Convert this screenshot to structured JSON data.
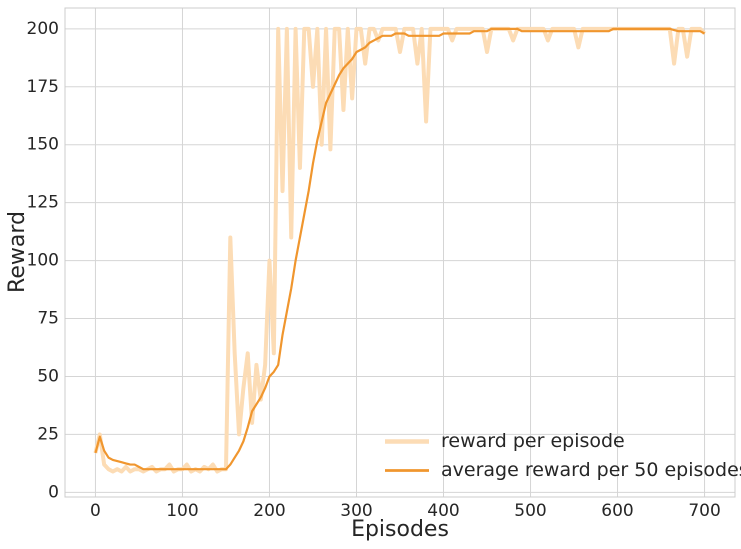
{
  "chart_data": {
    "type": "line",
    "x_label": "Episodes",
    "y_label": "Reward",
    "x": [
      0,
      5,
      10,
      15,
      20,
      25,
      30,
      35,
      40,
      45,
      50,
      55,
      60,
      65,
      70,
      75,
      80,
      85,
      90,
      95,
      100,
      105,
      110,
      115,
      120,
      125,
      130,
      135,
      140,
      145,
      150,
      155,
      160,
      165,
      170,
      175,
      180,
      185,
      190,
      195,
      200,
      205,
      210,
      215,
      220,
      225,
      230,
      235,
      240,
      245,
      250,
      255,
      260,
      265,
      270,
      275,
      280,
      285,
      290,
      295,
      300,
      305,
      310,
      315,
      320,
      325,
      330,
      335,
      340,
      345,
      350,
      355,
      360,
      365,
      370,
      375,
      380,
      385,
      390,
      395,
      400,
      405,
      410,
      415,
      420,
      425,
      430,
      435,
      440,
      445,
      450,
      455,
      460,
      465,
      470,
      475,
      480,
      485,
      490,
      495,
      500,
      505,
      510,
      515,
      520,
      525,
      530,
      535,
      540,
      545,
      550,
      555,
      560,
      565,
      570,
      575,
      580,
      585,
      590,
      595,
      600,
      605,
      610,
      615,
      620,
      625,
      630,
      635,
      640,
      645,
      650,
      655,
      660,
      665,
      670,
      675,
      680,
      685,
      690,
      695,
      700
    ],
    "series": [
      {
        "name": "reward per episode",
        "color": "#fcdcb5",
        "width": 4,
        "values": [
          17,
          25,
          12,
          10,
          9,
          10,
          9,
          11,
          9,
          10,
          10,
          9,
          10,
          11,
          9,
          10,
          10,
          12,
          9,
          10,
          10,
          12,
          9,
          10,
          9,
          11,
          10,
          12,
          9,
          10,
          10,
          110,
          60,
          25,
          45,
          60,
          30,
          55,
          40,
          55,
          100,
          60,
          200,
          130,
          200,
          110,
          200,
          140,
          200,
          200,
          175,
          200,
          150,
          200,
          148,
          200,
          200,
          165,
          200,
          170,
          200,
          200,
          185,
          200,
          200,
          195,
          200,
          200,
          200,
          200,
          190,
          200,
          200,
          200,
          185,
          200,
          160,
          200,
          200,
          200,
          200,
          200,
          195,
          200,
          200,
          200,
          200,
          200,
          200,
          200,
          190,
          200,
          200,
          200,
          200,
          200,
          195,
          200,
          200,
          200,
          200,
          200,
          200,
          200,
          195,
          200,
          200,
          200,
          200,
          200,
          200,
          192,
          200,
          200,
          200,
          200,
          200,
          200,
          200,
          200,
          200,
          200,
          200,
          200,
          200,
          200,
          200,
          200,
          200,
          200,
          200,
          200,
          200,
          185,
          200,
          200,
          188,
          200,
          200,
          200,
          198
        ]
      },
      {
        "name": "average reward per 50 episodes",
        "color": "#f0962e",
        "width": 2.2,
        "values": [
          17,
          24,
          18,
          15,
          14,
          13.5,
          13,
          12.5,
          12,
          12,
          11,
          10,
          10,
          10,
          10,
          10,
          10,
          10,
          10,
          10,
          10,
          10,
          10,
          10,
          10,
          10,
          10,
          10,
          10,
          10,
          10,
          12,
          15,
          18,
          22,
          28,
          35,
          38,
          41,
          45,
          50,
          52,
          55,
          68,
          78,
          88,
          100,
          110,
          120,
          130,
          142,
          152,
          160,
          168,
          172,
          176,
          180,
          183,
          185,
          187,
          190,
          191,
          192,
          194,
          195,
          196,
          197,
          197,
          197,
          198,
          198,
          198,
          197,
          197,
          197,
          197,
          197,
          197,
          197,
          197,
          198,
          198,
          198,
          198,
          198,
          198,
          198,
          199,
          199,
          199,
          199,
          200,
          200,
          200,
          200,
          200,
          200,
          200,
          199,
          199,
          199,
          199,
          199,
          199,
          199,
          199,
          199,
          199,
          199,
          199,
          199,
          199,
          199,
          199,
          199,
          199,
          199,
          199,
          199,
          200,
          200,
          200,
          200,
          200,
          200,
          200,
          200,
          200,
          200,
          200,
          200,
          200,
          200,
          199.5,
          199,
          199,
          199,
          199,
          199,
          199,
          198
        ]
      }
    ],
    "xlim": [
      -35,
      735
    ],
    "ylim": [
      -2,
      209
    ],
    "xticks": [
      0,
      100,
      200,
      300,
      400,
      500,
      600,
      700
    ],
    "yticks": [
      0,
      25,
      50,
      75,
      100,
      125,
      150,
      175,
      200
    ],
    "grid": true,
    "legend": "lower right"
  }
}
